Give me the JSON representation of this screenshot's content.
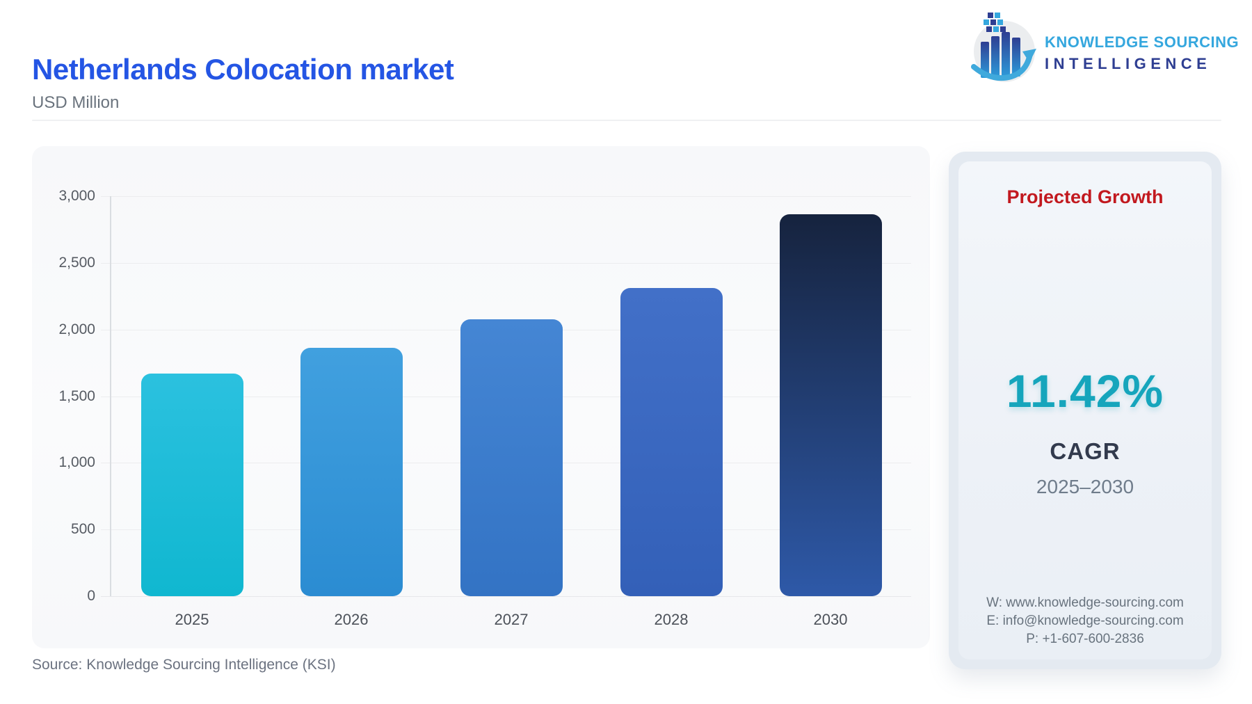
{
  "header": {
    "title": "Netherlands Colocation market",
    "units": "USD Million"
  },
  "logo": {
    "line1": "KNOWLEDGE SOURCING",
    "line2": "INTELLIGENCE",
    "accent_color": "#35A7DE",
    "navy_color": "#2E3E92"
  },
  "chart_data": {
    "type": "bar",
    "title": "Netherlands Colocation market",
    "ylabel": "USD Million",
    "xlabel": "",
    "categories": [
      "2025",
      "2026",
      "2027",
      "2028",
      "2030"
    ],
    "values": [
      1670,
      1860,
      2075,
      2310,
      2865
    ],
    "ylim": [
      0,
      3000
    ],
    "ytick_interval": 500,
    "ytick_labels": [
      "0",
      "500",
      "1,000",
      "1,500",
      "2,000",
      "2,500",
      "3,000"
    ],
    "grid": true,
    "legend": "none",
    "bar_colors": [
      {
        "top": "#2BC1DF",
        "bottom": "#10B7D0"
      },
      {
        "top": "#41A0DF",
        "bottom": "#2B8CD2"
      },
      {
        "top": "#4586D4",
        "bottom": "#3373C4"
      },
      {
        "top": "#4270C8",
        "bottom": "#3360B8"
      },
      {
        "top": "#16233E",
        "bottom": "#2E59A8"
      }
    ]
  },
  "panel": {
    "title": "Projected Growth",
    "title_color": "#C2191F",
    "cagr_value": "11.42%",
    "cagr_value_color": "#16A5BC",
    "cagr_label": "CAGR",
    "period": "2025–2030",
    "contact": [
      "W: www.knowledge-sourcing.com",
      "E: info@knowledge-sourcing.com",
      "P: +1-607-600-2836"
    ]
  },
  "footer": {
    "source": "Source: Knowledge Sourcing Intelligence (KSI)"
  }
}
